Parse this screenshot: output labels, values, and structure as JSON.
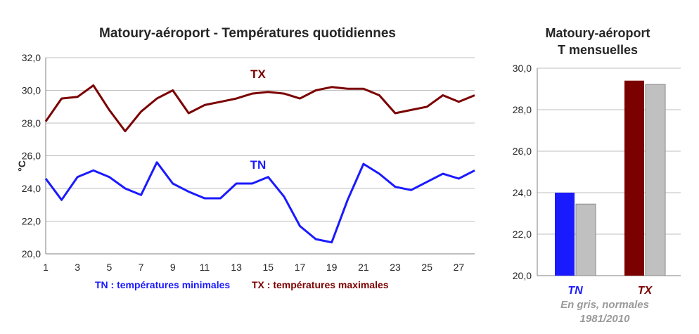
{
  "colors": {
    "tn": "#1a1aff",
    "tx": "#7b0000",
    "normal": "#c0c0c0",
    "grid": "#bfbfbf",
    "axis": "#7f7f7f"
  },
  "chart_data": [
    {
      "type": "line",
      "title": "Matoury-aéroport - Températures quotidiennes",
      "ylabel": "°C",
      "xlabel": "",
      "ylim": [
        20.0,
        32.0
      ],
      "yticks": [
        "20,0",
        "22,0",
        "24,0",
        "26,0",
        "28,0",
        "30,0",
        "32,0"
      ],
      "xticks": [
        "1",
        "3",
        "5",
        "7",
        "9",
        "11",
        "13",
        "15",
        "17",
        "19",
        "21",
        "23",
        "25",
        "27"
      ],
      "x": [
        1,
        2,
        3,
        4,
        5,
        6,
        7,
        8,
        9,
        10,
        11,
        12,
        13,
        14,
        15,
        16,
        17,
        18,
        19,
        20,
        21,
        22,
        23,
        24,
        25,
        26,
        27,
        28
      ],
      "series": [
        {
          "name": "TX",
          "values": [
            28.1,
            29.5,
            29.6,
            30.3,
            28.8,
            27.5,
            28.7,
            29.5,
            30.0,
            28.6,
            29.1,
            29.3,
            29.5,
            29.8,
            29.9,
            29.8,
            29.5,
            30.0,
            30.2,
            30.1,
            30.1,
            29.7,
            28.6,
            28.8,
            29.0,
            29.7,
            29.3,
            29.7
          ]
        },
        {
          "name": "TN",
          "values": [
            24.6,
            23.3,
            24.7,
            25.1,
            24.7,
            24.0,
            23.6,
            25.6,
            24.3,
            23.8,
            23.4,
            23.4,
            24.3,
            24.3,
            24.7,
            23.5,
            21.7,
            20.9,
            20.7,
            23.3,
            25.5,
            24.9,
            24.1,
            23.9,
            24.4,
            24.9,
            24.6,
            25.1
          ]
        }
      ],
      "legend": [
        "TN : températures minimales",
        "TX : températures maximales"
      ]
    },
    {
      "type": "bar",
      "title": [
        "Matoury-aéroport",
        "T mensuelles"
      ],
      "ylim": [
        20.0,
        30.0
      ],
      "yticks": [
        "20,0",
        "22,0",
        "24,0",
        "26,0",
        "28,0",
        "30,0"
      ],
      "categories": [
        "TN",
        "TX"
      ],
      "series": [
        {
          "values": [
            24.0,
            29.4
          ]
        },
        {
          "name": "normales 1981/2010",
          "values": [
            23.45,
            29.22
          ]
        }
      ],
      "note": [
        "En gris, normales",
        "1981/2010"
      ]
    }
  ]
}
